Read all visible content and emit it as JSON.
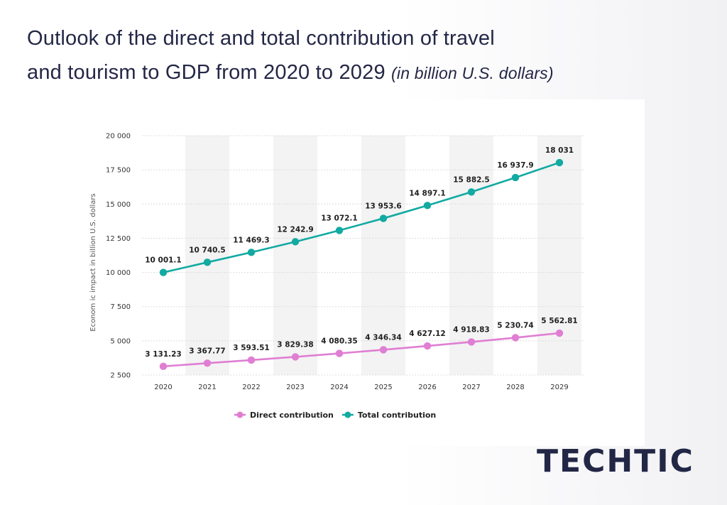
{
  "header": {
    "title_line1": "Outlook of the direct and total contribution of travel",
    "title_line2": "and tourism to GDP from 2020 to 2029",
    "title_unit": "(in billion U.S. dollars)"
  },
  "brand": {
    "name": "TECHTIC"
  },
  "chart_data": {
    "type": "line",
    "categories": [
      "2020",
      "2021",
      "2022",
      "2023",
      "2024",
      "2025",
      "2026",
      "2027",
      "2028",
      "2029"
    ],
    "ylabel": "Econom ic impact in billion U.S. dollars",
    "ylim": [
      2500,
      20000
    ],
    "yticks": [
      2500,
      5000,
      7500,
      10000,
      12500,
      15000,
      17500,
      20000
    ],
    "ytick_labels": [
      "2 500",
      "5 000",
      "7 500",
      "10 000",
      "12 500",
      "15 000",
      "17 500",
      "20 000"
    ],
    "grid": true,
    "legend_position": "bottom",
    "series": [
      {
        "name": "Direct contribution",
        "color": "#e07ed3",
        "values": [
          3131.23,
          3367.77,
          3593.51,
          3829.38,
          4080.35,
          4346.34,
          4627.12,
          4918.83,
          5230.74,
          5562.81
        ],
        "labels": [
          "3 131.23",
          "3 367.77",
          "3 593.51",
          "3 829.38",
          "4 080.35",
          "4 346.34",
          "4 627.12",
          "4 918.83",
          "5 230.74",
          "5 562.81"
        ]
      },
      {
        "name": "Total contribution",
        "color": "#12aaa2",
        "values": [
          10001.1,
          10740.5,
          11469.3,
          12242.9,
          13072.1,
          13953.6,
          14897.1,
          15882.5,
          16937.9,
          18031
        ],
        "labels": [
          "10 001.1",
          "10 740.5",
          "11 469.3",
          "12 242.9",
          "13 072.1",
          "13 953.6",
          "14 897.1",
          "15 882.5",
          "16 937.9",
          "18 031"
        ]
      }
    ]
  }
}
